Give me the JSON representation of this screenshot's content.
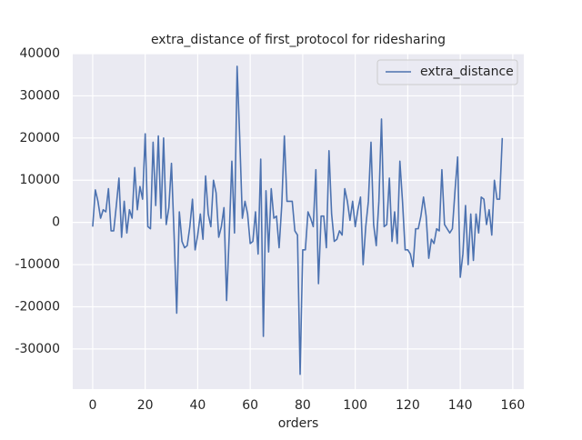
{
  "chart_data": {
    "type": "line",
    "title": "extra_distance of first_protocol for ridesharing",
    "x_label": "orders",
    "x": [
      0,
      1,
      2,
      3,
      4,
      5,
      6,
      7,
      8,
      9,
      10,
      11,
      12,
      13,
      14,
      15,
      16,
      17,
      18,
      19,
      20,
      21,
      22,
      23,
      24,
      25,
      26,
      27,
      28,
      29,
      30,
      31,
      32,
      33,
      34,
      35,
      36,
      37,
      38,
      39,
      40,
      41,
      42,
      43,
      44,
      45,
      46,
      47,
      48,
      49,
      50,
      51,
      52,
      53,
      54,
      55,
      56,
      57,
      58,
      59,
      60,
      61,
      62,
      63,
      64,
      65,
      66,
      67,
      68,
      69,
      70,
      71,
      72,
      73,
      74,
      75,
      76,
      77,
      78,
      79,
      80,
      81,
      82,
      83,
      84,
      85,
      86,
      87,
      88,
      89,
      90,
      91,
      92,
      93,
      94,
      95,
      96,
      97,
      98,
      99,
      100,
      101,
      102,
      103,
      104,
      105,
      106,
      107,
      108,
      109,
      110,
      111,
      112,
      113,
      114,
      115,
      116,
      117,
      118,
      119,
      120,
      121,
      122,
      123,
      124,
      125,
      126,
      127,
      128,
      129,
      130,
      131,
      132,
      133,
      134,
      135,
      136,
      137,
      138,
      139,
      140,
      141,
      142,
      143,
      144,
      145,
      146,
      147,
      148,
      149,
      150,
      151,
      152,
      153,
      154,
      155,
      156
    ],
    "series": [
      {
        "name": "extra_distance",
        "color": "#4c72b0",
        "values": [
          -1000,
          7700,
          5000,
          1000,
          3000,
          2500,
          8000,
          -2000,
          -2000,
          4000,
          10500,
          -3500,
          5000,
          -2500,
          3000,
          1000,
          13000,
          3000,
          8500,
          5500,
          21000,
          -1000,
          -1500,
          19000,
          4000,
          20500,
          1000,
          20000,
          -500,
          3500,
          14000,
          -3000,
          -21500,
          2500,
          -4500,
          -6000,
          -5500,
          -1000,
          5500,
          -6500,
          -3000,
          2000,
          -4000,
          11000,
          2000,
          -1000,
          10000,
          7000,
          -3500,
          -1000,
          3500,
          -18500,
          -3000,
          14500,
          -2500,
          37000,
          20000,
          1000,
          5000,
          2000,
          -5000,
          -4500,
          2500,
          -7500,
          15000,
          -27000,
          7500,
          -7000,
          8000,
          1000,
          1500,
          -6000,
          4000,
          20500,
          5000,
          5000,
          5000,
          -2000,
          -3000,
          -36000,
          -6500,
          -6500,
          2500,
          1000,
          -1000,
          12500,
          -14500,
          1500,
          1500,
          -6000,
          17000,
          2000,
          -4500,
          -4000,
          -2000,
          -3000,
          8000,
          5000,
          500,
          5000,
          -1000,
          3000,
          6000,
          -10000,
          -1000,
          5000,
          19000,
          -500,
          -5500,
          5000,
          24500,
          -1000,
          -500,
          10500,
          -4500,
          2500,
          -5000,
          14500,
          5000,
          -6500,
          -6500,
          -7500,
          -10500,
          -1500,
          -1500,
          1500,
          6000,
          1500,
          -8500,
          -4000,
          -5000,
          -1500,
          -2000,
          12500,
          -500,
          -1500,
          -2500,
          -1500,
          7500,
          15500,
          -13000,
          -7500,
          4000,
          -10000,
          2000,
          -9000,
          2000,
          -2500,
          6000,
          5500,
          -500,
          3000,
          -3000,
          10000,
          5500,
          5500,
          20000
        ]
      }
    ],
    "xlim": [
      -7.6,
      164.2
    ],
    "xticks": [
      0,
      20,
      40,
      60,
      80,
      100,
      120,
      140,
      160
    ],
    "ylim": [
      -39500,
      40000
    ],
    "yticks": [
      -30000,
      -20000,
      -10000,
      0,
      10000,
      20000,
      30000,
      40000
    ],
    "grid": true,
    "legend": "upper right"
  }
}
